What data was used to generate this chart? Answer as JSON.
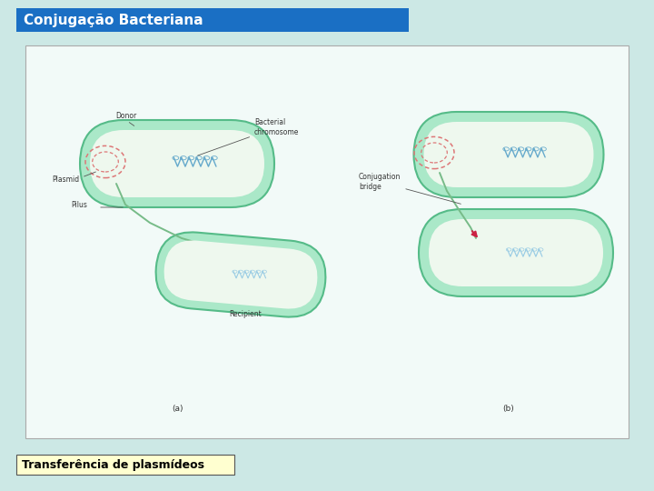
{
  "background_color": "#cce8e5",
  "title_text": "Conjugação Bacteriana",
  "title_bg": "#1a6fc4",
  "title_fg": "#ffffff",
  "title_fontsize": 11,
  "subtitle_text": "Transferência de plasmídeos",
  "subtitle_bg": "#ffffd0",
  "subtitle_fg": "#000000",
  "subtitle_fontsize": 9,
  "diagram_bg": "#f2faf8",
  "bacterium_fill": "#aae8c8",
  "bacterium_border": "#55bb88",
  "inner_fill": "#eef8ee",
  "plasmid_color": "#dd7777",
  "chromosome_color": "#66aacc",
  "pilus_color": "#77bb88",
  "annotation_fontsize": 5.5,
  "label_a": "(a)",
  "label_b": "(b)",
  "donor_label": "Donor",
  "recipient_label": "Recipient",
  "plasmid_label": "Plasmid",
  "pilus_label": "Pilus",
  "bact_chr_label": "Bacterial\nchromosome",
  "conj_bridge_label": "Conjugation\nbridge"
}
